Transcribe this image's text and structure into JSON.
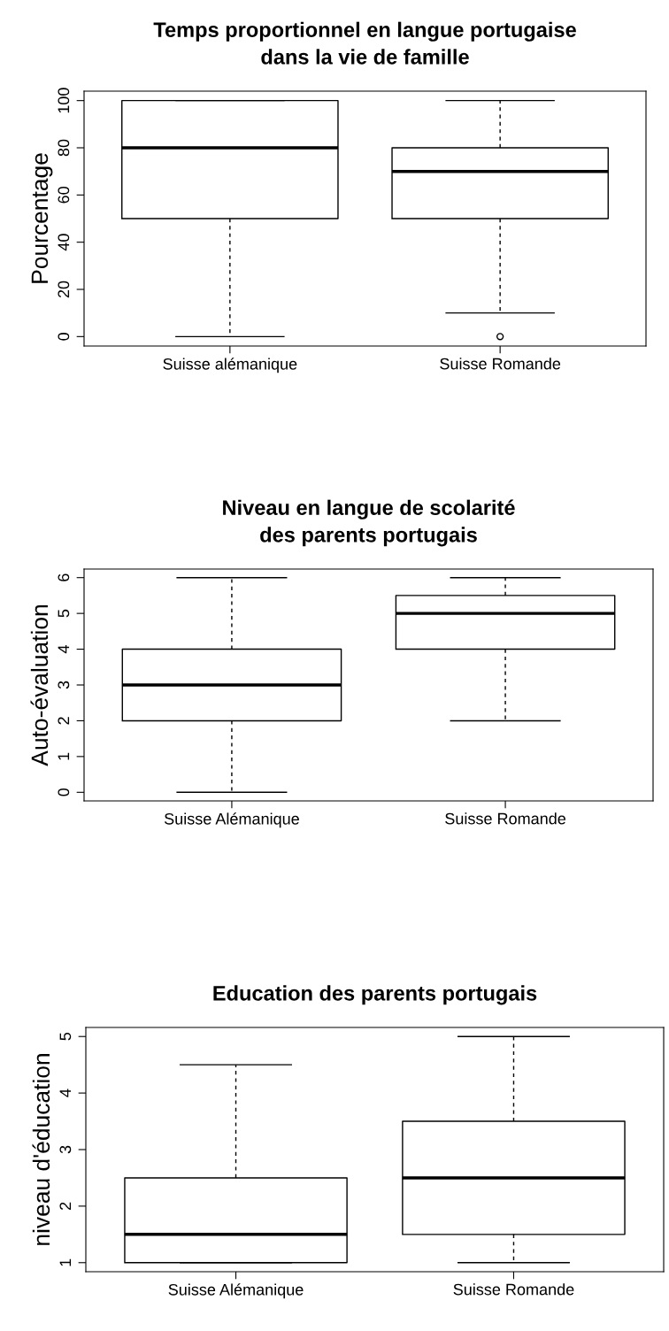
{
  "chart_data": [
    {
      "type": "box",
      "title": "Temps proportionnel en langue portugaise\ndans la vie de famille",
      "ylabel": "Pourcentage",
      "categories": [
        "Suisse alémanique",
        "Suisse Romande"
      ],
      "ylim": [
        -4,
        104
      ],
      "yticks": [
        0,
        20,
        40,
        60,
        80,
        100
      ],
      "boxes": [
        {
          "low": 0,
          "q1": 50,
          "median": 80,
          "q3": 100,
          "high": 100
        },
        {
          "low": 10,
          "q1": 50,
          "median": 70,
          "q3": 80,
          "high": 100,
          "outliers": [
            0
          ]
        }
      ]
    },
    {
      "type": "box",
      "title": "Niveau en langue de scolarité\ndes parents portugais",
      "ylabel": "Auto-évaluation",
      "categories": [
        "Suisse Alémanique",
        "Suisse Romande"
      ],
      "ylim": [
        -0.24,
        6.24
      ],
      "yticks": [
        0,
        1,
        2,
        3,
        4,
        5,
        6
      ],
      "boxes": [
        {
          "low": 0,
          "q1": 2,
          "median": 3,
          "q3": 4,
          "high": 6
        },
        {
          "low": 2,
          "q1": 4,
          "median": 5,
          "q3": 5.5,
          "high": 6
        }
      ]
    },
    {
      "type": "box",
      "title": "Education des parents portugais",
      "ylabel": "niveau d'éducation",
      "categories": [
        "Suisse Alémanique",
        "Suisse Romande"
      ],
      "ylim": [
        0.84,
        5.16
      ],
      "yticks": [
        1,
        2,
        3,
        4,
        5
      ],
      "boxes": [
        {
          "low": 1,
          "q1": 1,
          "median": 1.5,
          "q3": 2.5,
          "high": 4.5
        },
        {
          "low": 1,
          "q1": 1.5,
          "median": 2.5,
          "q3": 3.5,
          "high": 5
        }
      ]
    }
  ]
}
